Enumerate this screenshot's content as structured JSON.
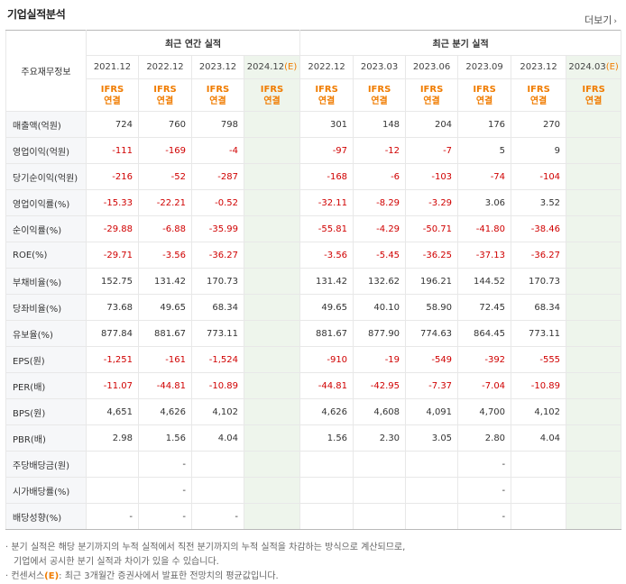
{
  "header": {
    "title": "기업실적분석",
    "more_label": "더보기"
  },
  "table": {
    "row_header_label": "주요재무정보",
    "groups": {
      "annual": "최근 연간 실적",
      "quarterly": "최근 분기 실적"
    },
    "annual_periods": [
      "2021.12",
      "2022.12",
      "2023.12",
      "2024.12"
    ],
    "quarter_periods": [
      "2022.12",
      "2023.03",
      "2023.06",
      "2023.09",
      "2023.12",
      "2024.03"
    ],
    "estimate_mark": "(E)",
    "basis_top": "IFRS",
    "basis_bottom": "연결",
    "rows": [
      {
        "label": "매출액(억원)",
        "annual": [
          "724",
          "760",
          "798",
          ""
        ],
        "quarter": [
          "301",
          "148",
          "204",
          "176",
          "270",
          ""
        ]
      },
      {
        "label": "영업이익(억원)",
        "annual": [
          "-111",
          "-169",
          "-4",
          ""
        ],
        "quarter": [
          "-97",
          "-12",
          "-7",
          "5",
          "9",
          ""
        ]
      },
      {
        "label": "당기순이익(억원)",
        "annual": [
          "-216",
          "-52",
          "-287",
          ""
        ],
        "quarter": [
          "-168",
          "-6",
          "-103",
          "-74",
          "-104",
          ""
        ]
      },
      {
        "label": "영업이익률(%)",
        "annual": [
          "-15.33",
          "-22.21",
          "-0.52",
          ""
        ],
        "quarter": [
          "-32.11",
          "-8.29",
          "-3.29",
          "3.06",
          "3.52",
          ""
        ]
      },
      {
        "label": "순이익률(%)",
        "annual": [
          "-29.88",
          "-6.88",
          "-35.99",
          ""
        ],
        "quarter": [
          "-55.81",
          "-4.29",
          "-50.71",
          "-41.80",
          "-38.46",
          ""
        ]
      },
      {
        "label": "ROE(%)",
        "annual": [
          "-29.71",
          "-3.56",
          "-36.27",
          ""
        ],
        "quarter": [
          "-3.56",
          "-5.45",
          "-36.25",
          "-37.13",
          "-36.27",
          ""
        ]
      },
      {
        "label": "부채비율(%)",
        "annual": [
          "152.75",
          "131.42",
          "170.73",
          ""
        ],
        "quarter": [
          "131.42",
          "132.62",
          "196.21",
          "144.52",
          "170.73",
          ""
        ]
      },
      {
        "label": "당좌비율(%)",
        "annual": [
          "73.68",
          "49.65",
          "68.34",
          ""
        ],
        "quarter": [
          "49.65",
          "40.10",
          "58.90",
          "72.45",
          "68.34",
          ""
        ]
      },
      {
        "label": "유보율(%)",
        "annual": [
          "877.84",
          "881.67",
          "773.11",
          ""
        ],
        "quarter": [
          "881.67",
          "877.90",
          "774.63",
          "864.45",
          "773.11",
          ""
        ]
      },
      {
        "label": "EPS(원)",
        "annual": [
          "-1,251",
          "-161",
          "-1,524",
          ""
        ],
        "quarter": [
          "-910",
          "-19",
          "-549",
          "-392",
          "-555",
          ""
        ]
      },
      {
        "label": "PER(배)",
        "annual": [
          "-11.07",
          "-44.81",
          "-10.89",
          ""
        ],
        "quarter": [
          "-44.81",
          "-42.95",
          "-7.37",
          "-7.04",
          "-10.89",
          ""
        ]
      },
      {
        "label": "BPS(원)",
        "annual": [
          "4,651",
          "4,626",
          "4,102",
          ""
        ],
        "quarter": [
          "4,626",
          "4,608",
          "4,091",
          "4,700",
          "4,102",
          ""
        ]
      },
      {
        "label": "PBR(배)",
        "annual": [
          "2.98",
          "1.56",
          "4.04",
          ""
        ],
        "quarter": [
          "1.56",
          "2.30",
          "3.05",
          "2.80",
          "4.04",
          ""
        ]
      },
      {
        "label": "주당배당금(원)",
        "annual": [
          "",
          "-",
          "",
          ""
        ],
        "quarter": [
          "",
          "",
          "",
          "-",
          "",
          ""
        ]
      },
      {
        "label": "시가배당률(%)",
        "annual": [
          "",
          "-",
          "",
          ""
        ],
        "quarter": [
          "",
          "",
          "",
          "-",
          "",
          ""
        ]
      },
      {
        "label": "배당성향(%)",
        "annual": [
          "-",
          "-",
          "-",
          ""
        ],
        "quarter": [
          "",
          "",
          "",
          "-",
          "",
          ""
        ]
      }
    ]
  },
  "notes": {
    "line1": "분기 실적은 해당 분기까지의 누적 실적에서 직전 분기까지의 누적 실적을 차감하는 방식으로 계산되므로,",
    "line2": "기업에서 공시한 분기 실적과 차이가 있을 수 있습니다.",
    "line3_pre": "컨센서스",
    "line3_mark": "(E)",
    "line3_post": ": 최근 3개월간 증권사에서 발표한 전망치의 평균값입니다."
  }
}
